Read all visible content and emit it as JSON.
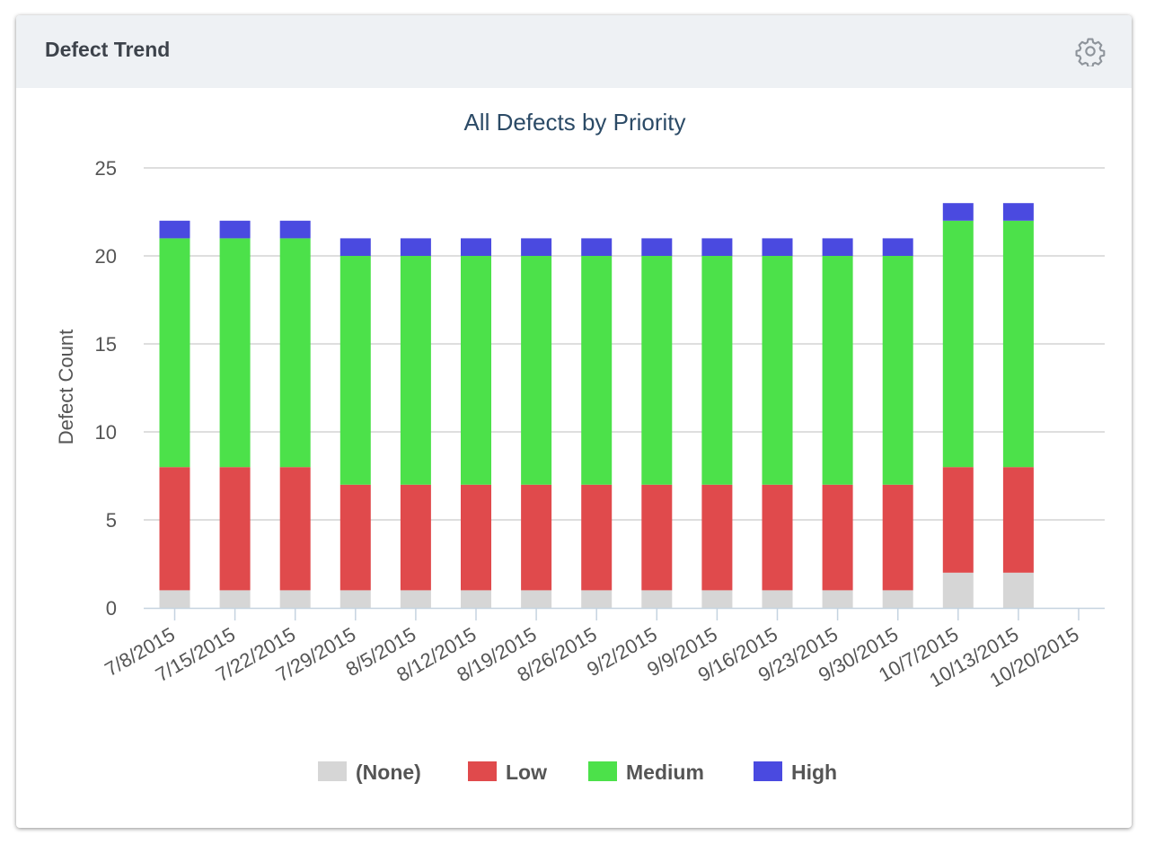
{
  "panel": {
    "title": "Defect Trend",
    "settings_icon": "gear-icon"
  },
  "chart_data": {
    "type": "bar",
    "stacked": true,
    "title": "All Defects by Priority",
    "xlabel": "",
    "ylabel": "Defect Count",
    "ylim": [
      0,
      25
    ],
    "yticks": [
      0,
      5,
      10,
      15,
      20,
      25
    ],
    "grid": true,
    "legend_position": "bottom",
    "categories": [
      "7/8/2015",
      "7/15/2015",
      "7/22/2015",
      "7/29/2015",
      "8/5/2015",
      "8/12/2015",
      "8/19/2015",
      "8/26/2015",
      "9/2/2015",
      "9/9/2015",
      "9/16/2015",
      "9/23/2015",
      "9/30/2015",
      "10/7/2015",
      "10/13/2015",
      "10/20/2015"
    ],
    "series": [
      {
        "name": "(None)",
        "color": "#d6d6d6",
        "values": [
          1,
          1,
          1,
          1,
          1,
          1,
          1,
          1,
          1,
          1,
          1,
          1,
          1,
          2,
          2,
          0
        ]
      },
      {
        "name": "Low",
        "color": "#e04a4c",
        "values": [
          7,
          7,
          7,
          6,
          6,
          6,
          6,
          6,
          6,
          6,
          6,
          6,
          6,
          6,
          6,
          0
        ]
      },
      {
        "name": "Medium",
        "color": "#4ce14a",
        "values": [
          13,
          13,
          13,
          13,
          13,
          13,
          13,
          13,
          13,
          13,
          13,
          13,
          13,
          14,
          14,
          0
        ]
      },
      {
        "name": "High",
        "color": "#4a4ae0",
        "values": [
          1,
          1,
          1,
          1,
          1,
          1,
          1,
          1,
          1,
          1,
          1,
          1,
          1,
          1,
          1,
          0
        ]
      }
    ]
  }
}
